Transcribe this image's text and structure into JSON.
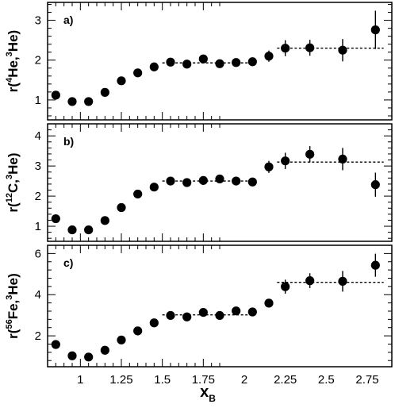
{
  "chart_data": [
    {
      "type": "scatter",
      "panel_label": "a)",
      "ylabel": {
        "prefix": "r(",
        "sup1": "4",
        "mid": "He,",
        "sup2": "3",
        "suffix": "He)"
      },
      "xlim": [
        0.8,
        2.9
      ],
      "ylim": [
        0.5,
        3.45
      ],
      "yticks": [
        1,
        2,
        3
      ],
      "points": [
        {
          "x": 0.85,
          "y": 1.12,
          "err": 0.06
        },
        {
          "x": 0.95,
          "y": 0.96,
          "err": 0.05
        },
        {
          "x": 1.05,
          "y": 0.96,
          "err": 0.05
        },
        {
          "x": 1.15,
          "y": 1.19,
          "err": 0.05
        },
        {
          "x": 1.25,
          "y": 1.48,
          "err": 0.05
        },
        {
          "x": 1.35,
          "y": 1.68,
          "err": 0.05
        },
        {
          "x": 1.45,
          "y": 1.83,
          "err": 0.05
        },
        {
          "x": 1.55,
          "y": 1.95,
          "err": 0.05
        },
        {
          "x": 1.65,
          "y": 1.9,
          "err": 0.05
        },
        {
          "x": 1.75,
          "y": 2.03,
          "err": 0.06
        },
        {
          "x": 1.85,
          "y": 1.91,
          "err": 0.06
        },
        {
          "x": 1.95,
          "y": 1.94,
          "err": 0.07
        },
        {
          "x": 2.05,
          "y": 1.96,
          "err": 0.08
        },
        {
          "x": 2.15,
          "y": 2.1,
          "err": 0.14
        },
        {
          "x": 2.25,
          "y": 2.3,
          "err": 0.2
        },
        {
          "x": 2.4,
          "y": 2.31,
          "err": 0.2
        },
        {
          "x": 2.6,
          "y": 2.25,
          "err": 0.28
        },
        {
          "x": 2.8,
          "y": 2.76,
          "err": 0.48
        }
      ],
      "fits": [
        {
          "x_from": 1.5,
          "x_to": 2.05,
          "y": 1.93
        },
        {
          "x_from": 2.2,
          "x_to": 2.85,
          "y": 2.3
        }
      ]
    },
    {
      "type": "scatter",
      "panel_label": "b)",
      "ylabel": {
        "prefix": "r(",
        "sup1": "12",
        "mid": "C,",
        "sup2": "3",
        "suffix": "He)"
      },
      "xlim": [
        0.8,
        2.9
      ],
      "ylim": [
        0.5,
        4.4
      ],
      "yticks": [
        1,
        2,
        3,
        4
      ],
      "points": [
        {
          "x": 0.85,
          "y": 1.25,
          "err": 0.07
        },
        {
          "x": 0.95,
          "y": 0.88,
          "err": 0.06
        },
        {
          "x": 1.05,
          "y": 0.88,
          "err": 0.06
        },
        {
          "x": 1.15,
          "y": 1.19,
          "err": 0.06
        },
        {
          "x": 1.25,
          "y": 1.62,
          "err": 0.06
        },
        {
          "x": 1.35,
          "y": 2.07,
          "err": 0.06
        },
        {
          "x": 1.45,
          "y": 2.3,
          "err": 0.06
        },
        {
          "x": 1.55,
          "y": 2.5,
          "err": 0.07
        },
        {
          "x": 1.65,
          "y": 2.45,
          "err": 0.07
        },
        {
          "x": 1.75,
          "y": 2.52,
          "err": 0.08
        },
        {
          "x": 1.85,
          "y": 2.57,
          "err": 0.09
        },
        {
          "x": 1.95,
          "y": 2.5,
          "err": 0.1
        },
        {
          "x": 2.05,
          "y": 2.47,
          "err": 0.11
        },
        {
          "x": 2.15,
          "y": 2.97,
          "err": 0.2
        },
        {
          "x": 2.25,
          "y": 3.17,
          "err": 0.27
        },
        {
          "x": 2.4,
          "y": 3.39,
          "err": 0.27
        },
        {
          "x": 2.6,
          "y": 3.23,
          "err": 0.37
        },
        {
          "x": 2.8,
          "y": 2.38,
          "err": 0.4
        }
      ],
      "fits": [
        {
          "x_from": 1.5,
          "x_to": 2.05,
          "y": 2.5
        },
        {
          "x_from": 2.2,
          "x_to": 2.85,
          "y": 3.13
        }
      ]
    },
    {
      "type": "scatter",
      "panel_label": "c)",
      "ylabel": {
        "prefix": "r(",
        "sup1": "56",
        "mid": "Fe,",
        "sup2": "3",
        "suffix": "He)"
      },
      "xlim": [
        0.8,
        2.9
      ],
      "ylim": [
        0.5,
        6.4
      ],
      "yticks": [
        2,
        4,
        6
      ],
      "xticks": [
        "1",
        "1.25",
        "1.5",
        "1.75",
        "2",
        "2.25",
        "2.5",
        "2.75"
      ],
      "xtick_values": [
        1,
        1.25,
        1.5,
        1.75,
        2,
        2.25,
        2.5,
        2.75
      ],
      "xlabel": {
        "main": "x",
        "sub": "B"
      },
      "points": [
        {
          "x": 0.85,
          "y": 1.58,
          "err": 0.08
        },
        {
          "x": 0.95,
          "y": 1.03,
          "err": 0.07
        },
        {
          "x": 1.05,
          "y": 0.97,
          "err": 0.07
        },
        {
          "x": 1.15,
          "y": 1.3,
          "err": 0.07
        },
        {
          "x": 1.25,
          "y": 1.8,
          "err": 0.07
        },
        {
          "x": 1.35,
          "y": 2.24,
          "err": 0.07
        },
        {
          "x": 1.45,
          "y": 2.63,
          "err": 0.08
        },
        {
          "x": 1.55,
          "y": 2.99,
          "err": 0.09
        },
        {
          "x": 1.65,
          "y": 2.92,
          "err": 0.09
        },
        {
          "x": 1.75,
          "y": 3.14,
          "err": 0.1
        },
        {
          "x": 1.85,
          "y": 2.99,
          "err": 0.11
        },
        {
          "x": 1.95,
          "y": 3.21,
          "err": 0.12
        },
        {
          "x": 2.05,
          "y": 3.16,
          "err": 0.14
        },
        {
          "x": 2.15,
          "y": 3.59,
          "err": 0.2
        },
        {
          "x": 2.25,
          "y": 4.39,
          "err": 0.34
        },
        {
          "x": 2.4,
          "y": 4.68,
          "err": 0.36
        },
        {
          "x": 2.6,
          "y": 4.65,
          "err": 0.5
        },
        {
          "x": 2.8,
          "y": 5.43,
          "err": 0.56
        }
      ],
      "fits": [
        {
          "x_from": 1.5,
          "x_to": 2.05,
          "y": 3.02
        },
        {
          "x_from": 2.2,
          "x_to": 2.85,
          "y": 4.6
        }
      ]
    }
  ]
}
